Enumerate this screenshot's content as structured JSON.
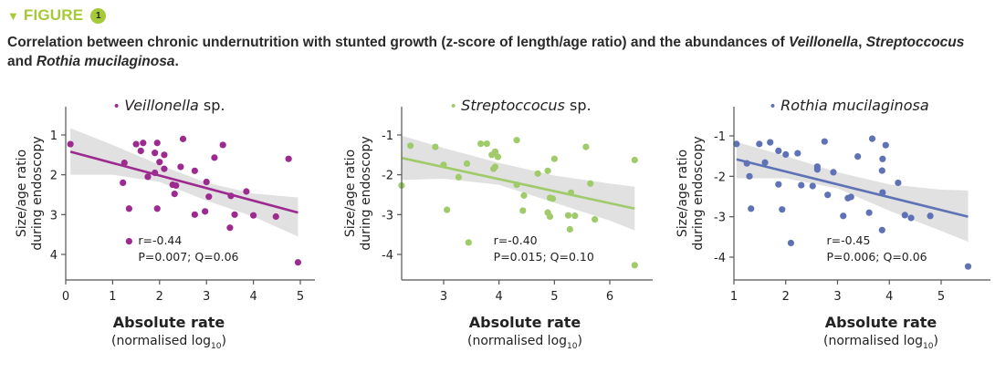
{
  "header": {
    "figure_label": "FIGURE",
    "figure_number": "1",
    "triangle_icon": "triangle-down-icon",
    "accent_color": "#a6c93a"
  },
  "caption": {
    "part1": "Correlation between chronic undernutrition with stunted growth (z-score of length/age ratio) and the abundances of ",
    "italic1": "Veillonella",
    "sep1": ", ",
    "italic2": "Streptoccocus",
    "part2": " and ",
    "italic3": "Rothia mucilaginosa",
    "end": "."
  },
  "chart_data": [
    {
      "type": "scatter",
      "title_italic": "Veillonella",
      "title_rest": " sp.",
      "color": "#9c2a8f",
      "xlabel": "Absolute rate",
      "xlabel_sub": "(normalised log",
      "xlabel_sub_index": "10",
      "xlabel_sub_end": ")",
      "ylabel_line1": "Size/age ratio",
      "ylabel_line2": "during endoscopy",
      "xlim": [
        0,
        5.25
      ],
      "ylim": [
        0.7,
        4.5
      ],
      "y_inverted": true,
      "xticks": [
        0,
        1,
        2,
        3,
        4,
        5
      ],
      "yticks": [
        1,
        2,
        3,
        4
      ],
      "ytick_labels": [
        "1",
        "2",
        "3",
        "4"
      ],
      "stat_r": "r=-0.44",
      "stat_pq": "P=0.007; Q=0.06",
      "regression": {
        "x": [
          0.1,
          4.95
        ],
        "y": [
          1.42,
          2.95
        ]
      },
      "ci_band": {
        "x": [
          0.1,
          1.0,
          2.0,
          3.0,
          4.0,
          4.95
        ],
        "upper": [
          0.83,
          1.25,
          1.75,
          2.2,
          2.47,
          2.57
        ],
        "lower": [
          2.0,
          2.0,
          2.18,
          2.65,
          3.05,
          3.55
        ]
      },
      "points": [
        [
          0.1,
          1.23
        ],
        [
          1.5,
          1.23
        ],
        [
          1.65,
          1.2
        ],
        [
          1.6,
          1.4
        ],
        [
          1.25,
          1.7
        ],
        [
          1.22,
          2.2
        ],
        [
          1.35,
          2.85
        ],
        [
          1.35,
          3.67
        ],
        [
          1.95,
          1.2
        ],
        [
          1.9,
          1.45
        ],
        [
          2.0,
          1.68
        ],
        [
          2.1,
          1.5
        ],
        [
          2.1,
          1.85
        ],
        [
          1.9,
          1.95
        ],
        [
          1.75,
          2.05
        ],
        [
          1.95,
          2.85
        ],
        [
          2.5,
          1.1
        ],
        [
          2.45,
          1.8
        ],
        [
          2.28,
          2.25
        ],
        [
          2.35,
          2.27
        ],
        [
          2.32,
          2.48
        ],
        [
          2.75,
          1.9
        ],
        [
          2.75,
          3.0
        ],
        [
          3.0,
          2.18
        ],
        [
          3.05,
          2.55
        ],
        [
          2.97,
          2.92
        ],
        [
          3.17,
          1.57
        ],
        [
          3.35,
          1.25
        ],
        [
          3.52,
          2.53
        ],
        [
          3.6,
          3.0
        ],
        [
          3.5,
          3.33
        ],
        [
          3.85,
          2.42
        ],
        [
          4.0,
          3.02
        ],
        [
          4.48,
          3.05
        ],
        [
          4.75,
          1.6
        ],
        [
          4.95,
          4.2
        ]
      ]
    },
    {
      "type": "scatter",
      "title_italic": "Streptoccocus",
      "title_rest": " sp.",
      "color": "#9fcb6b",
      "xlabel": "Absolute rate",
      "xlabel_sub": "(normalised log",
      "xlabel_sub_index": "10",
      "xlabel_sub_end": ")",
      "ylabel_line1": "Size/age ratio",
      "ylabel_line2": "during endoscopy",
      "xlim": [
        2.25,
        6.95
      ],
      "ylim": [
        -0.7,
        -4.5
      ],
      "y_inverted": false,
      "xticks": [
        3,
        4,
        5,
        6
      ],
      "yticks": [
        -1,
        -2,
        -3,
        -4
      ],
      "ytick_labels": [
        "-1",
        "-2",
        "-3",
        "-4"
      ],
      "stat_r": "r=-0.40",
      "stat_pq": "P=0.015; Q=0.10",
      "regression": {
        "x": [
          2.25,
          6.45
        ],
        "y": [
          -1.58,
          -2.85
        ]
      },
      "ci_band": {
        "x": [
          2.25,
          3.0,
          4.0,
          5.0,
          6.0,
          6.45
        ],
        "upper": [
          -1.02,
          -1.33,
          -1.7,
          -2.02,
          -2.22,
          -2.3
        ],
        "lower": [
          -2.13,
          -2.1,
          -2.25,
          -2.7,
          -3.15,
          -3.4
        ]
      },
      "points": [
        [
          2.24,
          -2.27
        ],
        [
          2.4,
          -1.27
        ],
        [
          2.85,
          -1.3
        ],
        [
          3.0,
          -1.75
        ],
        [
          3.06,
          -2.88
        ],
        [
          3.27,
          -2.06
        ],
        [
          3.42,
          -1.72
        ],
        [
          3.45,
          -3.7
        ],
        [
          3.67,
          -1.22
        ],
        [
          3.78,
          -1.22
        ],
        [
          3.93,
          -1.42
        ],
        [
          3.87,
          -1.5
        ],
        [
          3.98,
          -1.55
        ],
        [
          3.9,
          -1.85
        ],
        [
          3.93,
          -1.8
        ],
        [
          4.32,
          -1.13
        ],
        [
          4.32,
          -2.25
        ],
        [
          4.45,
          -2.52
        ],
        [
          4.43,
          -2.9
        ],
        [
          4.7,
          -1.97
        ],
        [
          4.88,
          -1.9
        ],
        [
          5.0,
          -1.6
        ],
        [
          4.92,
          -2.58
        ],
        [
          4.97,
          -2.6
        ],
        [
          4.88,
          -2.95
        ],
        [
          4.92,
          -3.05
        ],
        [
          5.25,
          -3.02
        ],
        [
          5.37,
          -3.03
        ],
        [
          5.28,
          -3.37
        ],
        [
          5.3,
          -2.45
        ],
        [
          5.57,
          -1.3
        ],
        [
          5.65,
          -2.22
        ],
        [
          5.73,
          -3.12
        ],
        [
          6.45,
          -1.63
        ],
        [
          6.45,
          -4.27
        ]
      ]
    },
    {
      "type": "scatter",
      "title_italic": "Rothia mucilaginosa",
      "title_rest": "",
      "color": "#5e72b5",
      "xlabel": "Absolute rate",
      "xlabel_sub": "(normalised log",
      "xlabel_sub_index": "10",
      "xlabel_sub_end": ")",
      "ylabel_line1": "Size/age ratio",
      "ylabel_line2": "during endoscopy",
      "xlim": [
        1,
        6.0
      ],
      "ylim": [
        -0.7,
        -4.5
      ],
      "y_inverted": false,
      "xticks": [
        1,
        2,
        3,
        4,
        5
      ],
      "yticks": [
        -1,
        -2,
        -3,
        -4
      ],
      "ytick_labels": [
        "-1",
        "-2",
        "-3",
        "-4"
      ],
      "stat_r": "r=-0.45",
      "stat_pq": "P=0.006; Q=0.06",
      "regression": {
        "x": [
          1.05,
          5.52
        ],
        "y": [
          -1.58,
          -3.0
        ]
      },
      "ci_band": {
        "x": [
          1.05,
          2.0,
          3.0,
          4.0,
          5.0,
          5.52
        ],
        "upper": [
          -1.15,
          -1.5,
          -1.9,
          -2.2,
          -2.33,
          -2.35
        ],
        "lower": [
          -2.05,
          -2.05,
          -2.3,
          -2.85,
          -3.35,
          -3.62
        ]
      },
      "points": [
        [
          1.05,
          -1.2
        ],
        [
          1.25,
          -1.68
        ],
        [
          1.3,
          -2.0
        ],
        [
          1.33,
          -2.8
        ],
        [
          1.49,
          -1.2
        ],
        [
          1.7,
          -1.16
        ],
        [
          1.6,
          -1.66
        ],
        [
          1.86,
          -1.37
        ],
        [
          2.0,
          -1.46
        ],
        [
          1.86,
          -2.2
        ],
        [
          1.93,
          -2.82
        ],
        [
          2.1,
          -3.65
        ],
        [
          2.23,
          -1.43
        ],
        [
          2.3,
          -2.22
        ],
        [
          2.52,
          -2.24
        ],
        [
          2.61,
          -1.76
        ],
        [
          2.61,
          -1.83
        ],
        [
          2.75,
          -1.14
        ],
        [
          2.81,
          -2.46
        ],
        [
          2.92,
          -1.9
        ],
        [
          3.11,
          -2.98
        ],
        [
          3.2,
          -2.54
        ],
        [
          3.26,
          -2.51
        ],
        [
          3.39,
          -1.51
        ],
        [
          3.61,
          -2.9
        ],
        [
          3.67,
          -1.07
        ],
        [
          3.86,
          -3.33
        ],
        [
          3.86,
          -1.86
        ],
        [
          3.87,
          -1.57
        ],
        [
          3.87,
          -2.4
        ],
        [
          3.93,
          -1.23
        ],
        [
          4.17,
          -2.16
        ],
        [
          4.3,
          -2.96
        ],
        [
          4.42,
          -3.03
        ],
        [
          4.79,
          -2.98
        ],
        [
          5.52,
          -4.23
        ]
      ]
    }
  ]
}
